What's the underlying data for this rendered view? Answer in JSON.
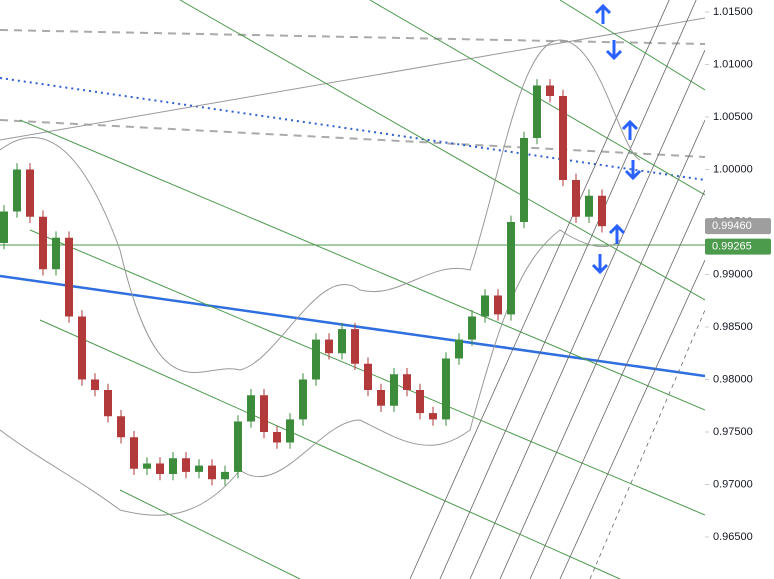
{
  "chart_data": {
    "type": "candlestick",
    "categories": [
      null,
      null,
      null,
      null,
      null,
      null,
      null,
      null,
      null,
      null,
      null,
      null,
      null,
      null,
      null,
      null,
      null,
      null,
      null,
      null,
      null,
      null,
      null,
      null,
      null,
      null,
      null,
      null,
      null,
      null,
      null,
      null,
      null,
      null,
      null,
      null,
      null,
      null,
      null,
      null,
      null,
      null,
      null,
      null,
      null,
      null,
      null
    ],
    "open": [
      0.993,
      0.996,
      1.0,
      0.9955,
      0.9905,
      0.9935,
      0.986,
      0.98,
      0.979,
      0.9765,
      0.9745,
      0.9715,
      0.972,
      0.971,
      0.9725,
      0.9712,
      0.9718,
      0.9705,
      0.9712,
      0.976,
      0.9785,
      0.975,
      0.974,
      0.9762,
      0.98,
      0.9838,
      0.9825,
      0.9848,
      0.9815,
      0.979,
      0.9775,
      0.9805,
      0.979,
      0.9768,
      0.9762,
      0.982,
      0.9838,
      0.986,
      0.988,
      0.9862,
      0.995,
      1.003,
      1.008,
      1.007,
      0.999,
      0.9955,
      0.9975
    ],
    "high": [
      0.9966,
      1.0006,
      1.0006,
      0.9961,
      0.9941,
      0.9941,
      0.9866,
      0.9806,
      0.9796,
      0.9771,
      0.9751,
      0.9726,
      0.9726,
      0.9731,
      0.9731,
      0.9724,
      0.9724,
      0.9718,
      0.9766,
      0.9791,
      0.9791,
      0.9756,
      0.9768,
      0.9806,
      0.9844,
      0.9844,
      0.9854,
      0.9854,
      0.9821,
      0.9796,
      0.9811,
      0.9811,
      0.9796,
      0.9774,
      0.9826,
      0.9844,
      0.9866,
      0.9886,
      0.9886,
      0.9956,
      1.0036,
      1.0086,
      1.0086,
      1.0076,
      0.9996,
      0.9981,
      0.9981
    ],
    "low": [
      0.9924,
      0.9954,
      0.9949,
      0.9899,
      0.9899,
      0.9854,
      0.9794,
      0.9784,
      0.9759,
      0.9739,
      0.9709,
      0.9709,
      0.9704,
      0.9704,
      0.9706,
      0.9706,
      0.9699,
      0.9699,
      0.9706,
      0.9754,
      0.9744,
      0.9734,
      0.9734,
      0.9756,
      0.9794,
      0.9819,
      0.9819,
      0.9809,
      0.9784,
      0.9769,
      0.9769,
      0.9784,
      0.9762,
      0.9756,
      0.9756,
      0.9814,
      0.9832,
      0.9854,
      0.9856,
      0.9856,
      0.9944,
      1.0024,
      1.0064,
      0.9984,
      0.9949,
      0.9949,
      0.994
    ],
    "close": [
      0.996,
      1.0,
      0.9955,
      0.9905,
      0.9935,
      0.986,
      0.98,
      0.979,
      0.9765,
      0.9745,
      0.9715,
      0.972,
      0.971,
      0.9725,
      0.9712,
      0.9718,
      0.9705,
      0.9712,
      0.976,
      0.9785,
      0.975,
      0.974,
      0.9762,
      0.98,
      0.9838,
      0.9825,
      0.9848,
      0.9815,
      0.979,
      0.9775,
      0.9805,
      0.979,
      0.9768,
      0.9762,
      0.982,
      0.9838,
      0.986,
      0.988,
      0.9862,
      0.995,
      1.003,
      1.008,
      1.007,
      0.999,
      0.9955,
      0.9975,
      0.9946
    ],
    "up_color": "#3c8c3c",
    "down_color": "#b23a3a",
    "ylim": [
      0.961,
      1.01614
    ],
    "yticks": [
      {
        "value": 1.015,
        "label": "1.01500"
      },
      {
        "value": 1.01,
        "label": "1.01000"
      },
      {
        "value": 1.005,
        "label": "1.00500"
      },
      {
        "value": 1.0,
        "label": "1.00000"
      },
      {
        "value": 0.995,
        "label": "0.99500"
      },
      {
        "value": 0.99,
        "label": "0.99000"
      },
      {
        "value": 0.985,
        "label": "0.98500"
      },
      {
        "value": 0.98,
        "label": "0.98000"
      },
      {
        "value": 0.975,
        "label": "0.97500"
      },
      {
        "value": 0.97,
        "label": "0.97000"
      },
      {
        "value": 0.965,
        "label": "0.96500"
      }
    ],
    "price_labels": [
      {
        "value": 0.9946,
        "label": "0.99460",
        "color": "#9e9e9e"
      },
      {
        "value": 0.99265,
        "label": "0.99265",
        "color": "#4c9a4c"
      }
    ],
    "grid": false
  }
}
